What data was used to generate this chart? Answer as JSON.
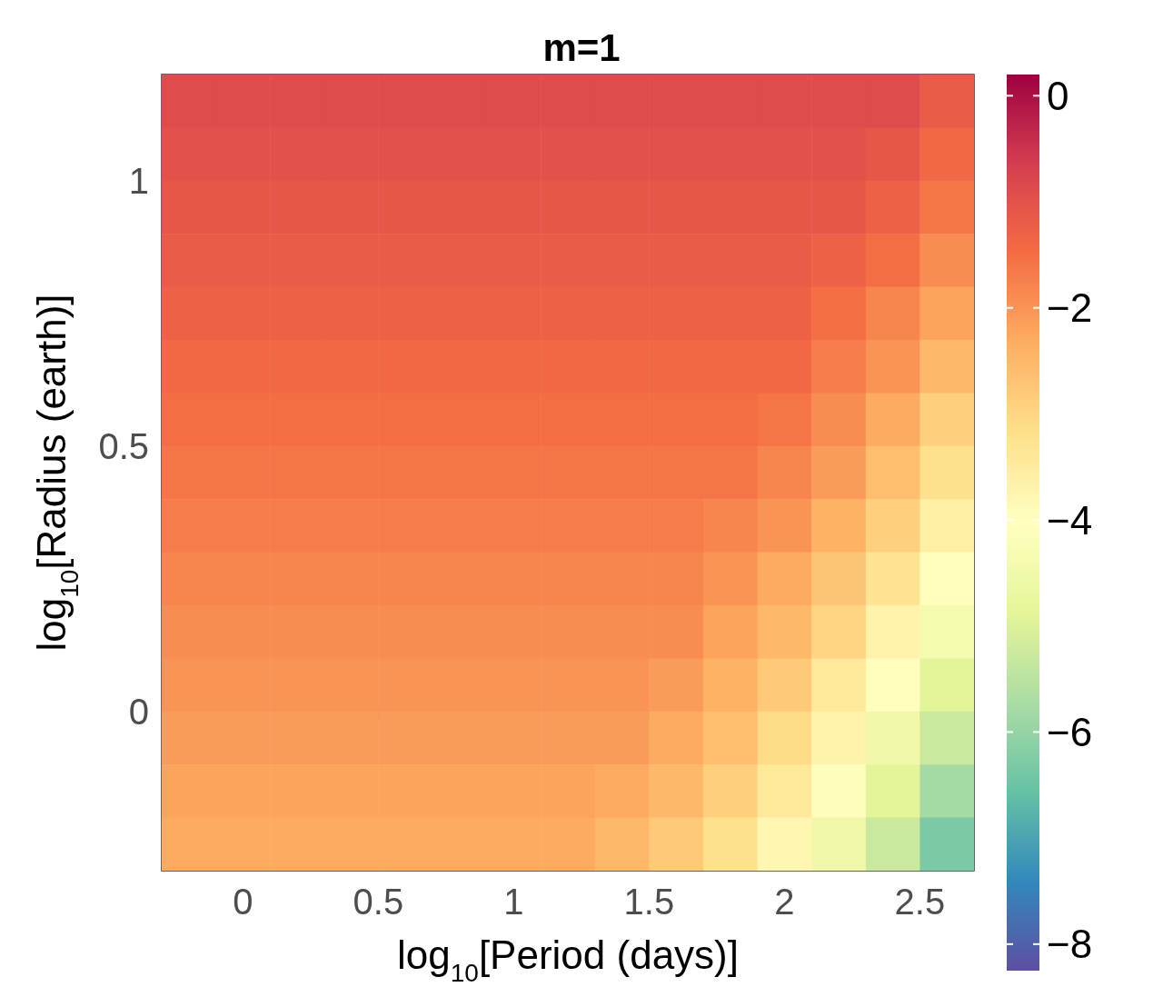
{
  "chart_data": {
    "type": "heatmap",
    "title": "m=1",
    "xlabel": "log$_{10}$[Period (days)]",
    "ylabel": "log$_{10}$[Radius (earth)]",
    "x": [
      -0.2,
      0,
      0.2,
      0.4,
      0.6,
      0.8,
      1.0,
      1.2,
      1.4,
      1.6,
      1.8,
      2.0,
      2.2,
      2.4,
      2.6
    ],
    "y": [
      1.15,
      1.05,
      0.95,
      0.85,
      0.75,
      0.65,
      0.55,
      0.45,
      0.35,
      0.25,
      0.15,
      0.05,
      -0.05,
      -0.15,
      -0.25
    ],
    "cells": [
      [
        -0.9,
        -0.9,
        -0.9,
        -0.9,
        -0.9,
        -0.9,
        -0.9,
        -0.9,
        -0.9,
        -0.9,
        -0.9,
        -0.9,
        -0.9,
        -0.9,
        -1.2
      ],
      [
        -1.0,
        -1.0,
        -1.0,
        -1.0,
        -1.0,
        -1.0,
        -1.0,
        -1.0,
        -1.0,
        -1.0,
        -1.0,
        -1.0,
        -1.0,
        -1.1,
        -1.4
      ],
      [
        -1.1,
        -1.1,
        -1.1,
        -1.1,
        -1.1,
        -1.1,
        -1.1,
        -1.1,
        -1.1,
        -1.1,
        -1.1,
        -1.1,
        -1.1,
        -1.3,
        -1.6
      ],
      [
        -1.2,
        -1.2,
        -1.2,
        -1.2,
        -1.2,
        -1.2,
        -1.2,
        -1.2,
        -1.2,
        -1.2,
        -1.2,
        -1.2,
        -1.3,
        -1.5,
        -1.9
      ],
      [
        -1.3,
        -1.3,
        -1.3,
        -1.3,
        -1.3,
        -1.3,
        -1.3,
        -1.3,
        -1.3,
        -1.3,
        -1.3,
        -1.3,
        -1.5,
        -1.8,
        -2.2
      ],
      [
        -1.4,
        -1.4,
        -1.4,
        -1.4,
        -1.4,
        -1.4,
        -1.4,
        -1.4,
        -1.4,
        -1.4,
        -1.4,
        -1.4,
        -1.7,
        -2.0,
        -2.5
      ],
      [
        -1.5,
        -1.5,
        -1.5,
        -1.5,
        -1.5,
        -1.5,
        -1.5,
        -1.5,
        -1.5,
        -1.5,
        -1.5,
        -1.6,
        -1.9,
        -2.3,
        -2.9
      ],
      [
        -1.6,
        -1.6,
        -1.6,
        -1.6,
        -1.6,
        -1.6,
        -1.6,
        -1.6,
        -1.6,
        -1.6,
        -1.6,
        -1.8,
        -2.1,
        -2.6,
        -3.2
      ],
      [
        -1.7,
        -1.7,
        -1.7,
        -1.7,
        -1.7,
        -1.7,
        -1.7,
        -1.7,
        -1.7,
        -1.7,
        -1.8,
        -2.0,
        -2.4,
        -2.9,
        -3.6
      ],
      [
        -1.8,
        -1.8,
        -1.8,
        -1.8,
        -1.8,
        -1.8,
        -1.8,
        -1.8,
        -1.8,
        -1.8,
        -2.0,
        -2.3,
        -2.7,
        -3.3,
        -4.0
      ],
      [
        -1.9,
        -1.9,
        -1.9,
        -1.9,
        -1.9,
        -1.9,
        -1.9,
        -1.9,
        -1.9,
        -1.9,
        -2.2,
        -2.5,
        -3.0,
        -3.7,
        -4.4
      ],
      [
        -2.0,
        -2.0,
        -2.0,
        -2.0,
        -2.0,
        -2.0,
        -2.0,
        -2.0,
        -2.0,
        -2.1,
        -2.4,
        -2.8,
        -3.4,
        -4.0,
        -4.9
      ],
      [
        -2.1,
        -2.1,
        -2.1,
        -2.1,
        -2.1,
        -2.1,
        -2.1,
        -2.1,
        -2.1,
        -2.3,
        -2.6,
        -3.1,
        -3.7,
        -4.5,
        -5.3
      ],
      [
        -2.2,
        -2.2,
        -2.2,
        -2.2,
        -2.2,
        -2.2,
        -2.2,
        -2.2,
        -2.3,
        -2.5,
        -2.9,
        -3.4,
        -4.1,
        -4.9,
        -5.8
      ],
      [
        -2.3,
        -2.3,
        -2.3,
        -2.3,
        -2.3,
        -2.3,
        -2.3,
        -2.3,
        -2.5,
        -2.8,
        -3.2,
        -3.8,
        -4.5,
        -5.3,
        -6.3
      ]
    ],
    "xlim": [
      -0.3,
      2.7
    ],
    "xticks": [
      0,
      0.5,
      1,
      1.5,
      2,
      2.5
    ],
    "ylim": [
      -0.3,
      1.2
    ],
    "yticks": [
      0,
      0.5,
      1
    ],
    "clim": [
      -8.25,
      0.2
    ],
    "cticks": [
      {
        "value": 0,
        "label": "0"
      },
      {
        "value": -2,
        "label": "−2"
      },
      {
        "value": -4,
        "label": "−4"
      },
      {
        "value": -6,
        "label": "−6"
      },
      {
        "value": -8,
        "label": "−8"
      }
    ],
    "grid": false
  }
}
